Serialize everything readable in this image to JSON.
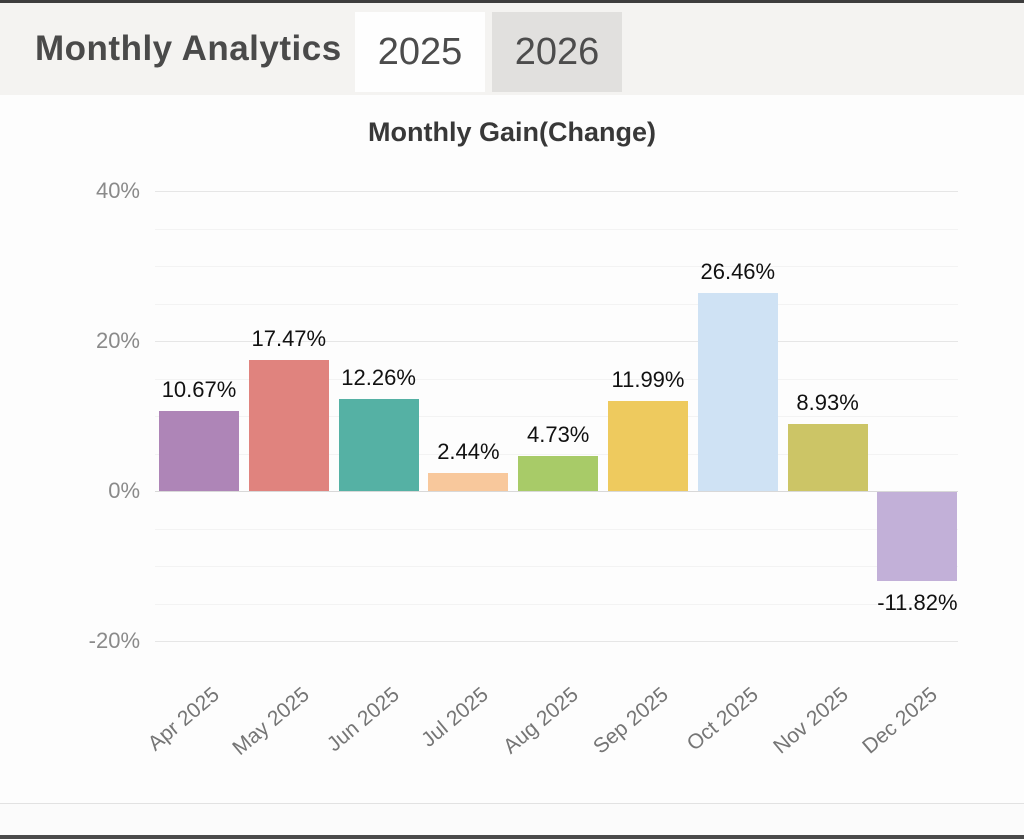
{
  "header": {
    "title": "Monthly Analytics",
    "tabs": [
      {
        "label": "2025",
        "active": true
      },
      {
        "label": "2026",
        "active": false
      }
    ]
  },
  "chart_data": {
    "type": "bar",
    "title": "Monthly Gain(Change)",
    "categories": [
      "Apr 2025",
      "May 2025",
      "Jun 2025",
      "Jul 2025",
      "Aug 2025",
      "Sep 2025",
      "Oct 2025",
      "Nov 2025",
      "Dec 2025"
    ],
    "values": [
      10.67,
      17.47,
      12.26,
      2.44,
      4.73,
      11.99,
      26.46,
      8.93,
      -11.82
    ],
    "value_labels": [
      "10.67%",
      "17.47%",
      "12.26%",
      "2.44%",
      "4.73%",
      "11.99%",
      "26.46%",
      "8.93%",
      "-11.82%"
    ],
    "bar_colors": [
      "#ae85b7",
      "#e0837e",
      "#55b1a4",
      "#f8c89c",
      "#a8cb68",
      "#eeca5e",
      "#cfe2f4",
      "#ccc566",
      "#c2b0d8"
    ],
    "yticks": [
      {
        "value": 40,
        "label": "40%"
      },
      {
        "value": 20,
        "label": "20%"
      },
      {
        "value": 0,
        "label": "0%"
      },
      {
        "value": -20,
        "label": "-20%"
      }
    ],
    "ylim": [
      -25,
      42
    ],
    "minor_grid_step": 5,
    "grid": true,
    "legend": "none",
    "xlabel": "",
    "ylabel": ""
  }
}
